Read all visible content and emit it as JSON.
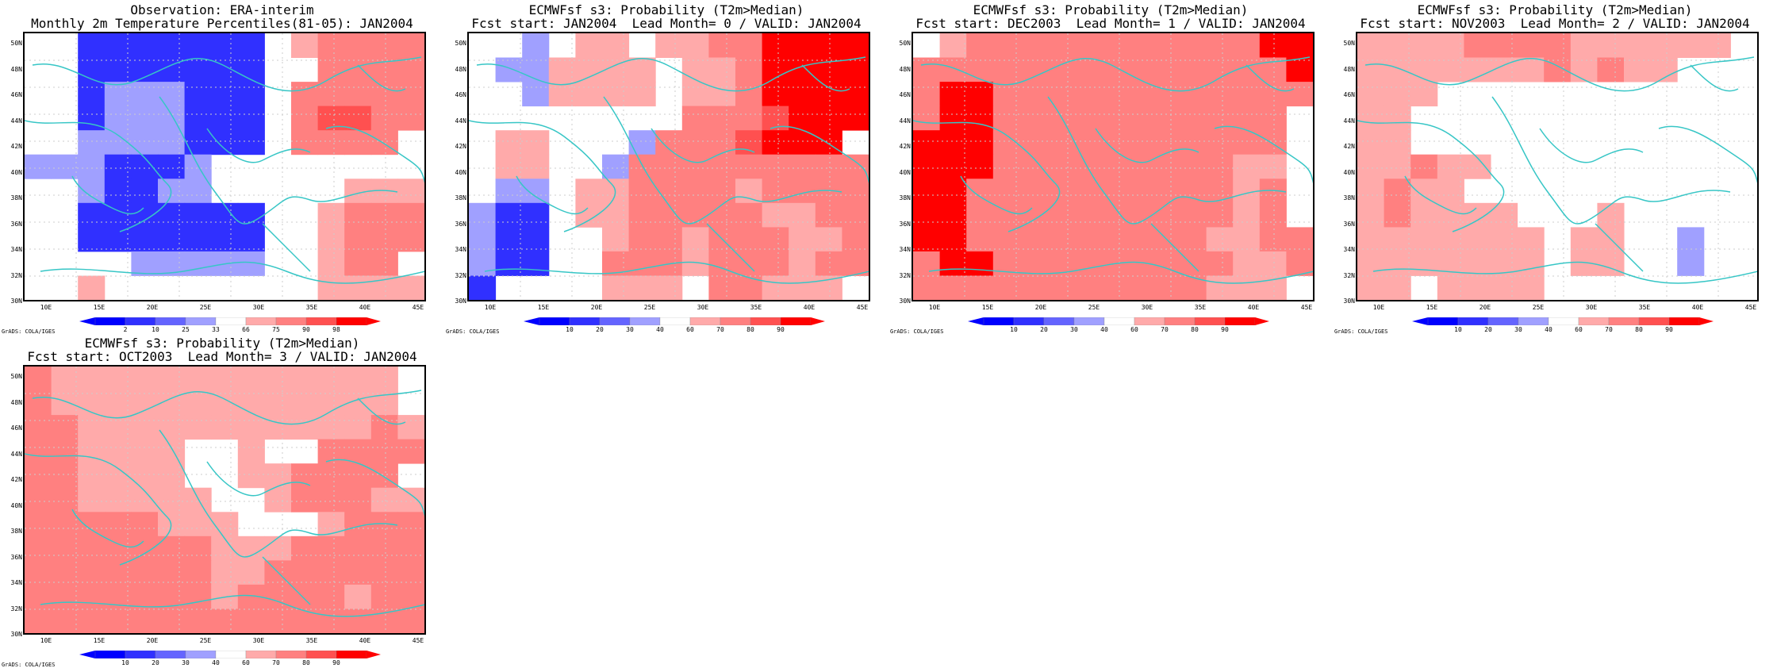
{
  "panels": [
    {
      "title1": "Observation: ERA-interim",
      "title2": "Monthly 2m Temperature Percentiles(81-05): JAN2004",
      "cbar": "obs"
    },
    {
      "title1": "ECMWFsf s3: Probability (T2m>Median)",
      "title2": "Fcst start: JAN2004  Lead Month= 0 / VALID: JAN2004",
      "cbar": "prob"
    },
    {
      "title1": "ECMWFsf s3: Probability (T2m>Median)",
      "title2": "Fcst start: DEC2003  Lead Month= 1 / VALID: JAN2004",
      "cbar": "prob"
    },
    {
      "title1": "ECMWFsf s3: Probability (T2m>Median)",
      "title2": "Fcst start: NOV2003  Lead Month= 2 / VALID: JAN2004",
      "cbar": "prob"
    },
    {
      "title1": "ECMWFsf s3: Probability (T2m>Median)",
      "title2": "Fcst start: OCT2003  Lead Month= 3 / VALID: JAN2004",
      "cbar": "prob"
    }
  ],
  "lat_labels": [
    "50N",
    "48N",
    "46N",
    "44N",
    "42N",
    "40N",
    "38N",
    "36N",
    "34N",
    "32N",
    "30N"
  ],
  "lon_labels": [
    "10E",
    "15E",
    "20E",
    "25E",
    "30E",
    "35E",
    "40E",
    "45E"
  ],
  "obs_colorbar_labels": [
    "2",
    "10",
    "25",
    "33",
    "66",
    "75",
    "90",
    "98"
  ],
  "prob_colorbar_labels": [
    "10",
    "20",
    "30",
    "40",
    "60",
    "70",
    "80",
    "90"
  ],
  "credit": "GrADS: COLA/IGES",
  "colors": {
    "coast": "#37c6c6",
    "deep_red": "#ff0000",
    "red": "#ff5050",
    "mid_red": "#ff8080",
    "light_red": "#ffaaaa",
    "deep_blue": "#3030ff",
    "blue": "#6464ff",
    "light_blue": "#a0a0ff"
  }
}
